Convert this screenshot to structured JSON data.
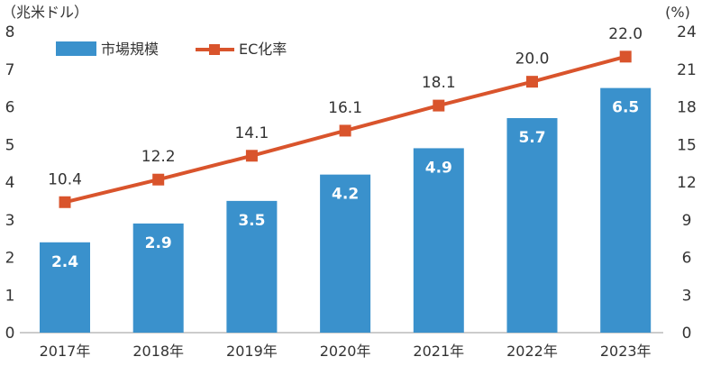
{
  "chart_data": {
    "type": "bar+line",
    "categories": [
      "2017年",
      "2018年",
      "2019年",
      "2020年",
      "2021年",
      "2022年",
      "2023年"
    ],
    "series": [
      {
        "name": "市場規模",
        "type": "bar",
        "axis": "left",
        "color": "#3a91cc",
        "values": [
          2.4,
          2.9,
          3.5,
          4.2,
          4.9,
          5.7,
          6.5
        ],
        "labels": [
          "2.4",
          "2.9",
          "3.5",
          "4.2",
          "4.9",
          "5.7",
          "6.5"
        ]
      },
      {
        "name": "EC化率",
        "type": "line",
        "axis": "right",
        "color": "#d9542c",
        "values": [
          10.4,
          12.2,
          14.1,
          16.1,
          18.1,
          20.0,
          22.0
        ],
        "labels": [
          "10.4",
          "12.2",
          "14.1",
          "16.1",
          "18.1",
          "20.0",
          "22.0"
        ]
      }
    ],
    "y_left": {
      "unit": "（兆米ドル）",
      "ylim": [
        0,
        8
      ],
      "ticks": [
        "0",
        "1",
        "2",
        "3",
        "4",
        "5",
        "6",
        "7",
        "8"
      ]
    },
    "y_right": {
      "unit": "(%)",
      "ylim": [
        0,
        24
      ],
      "ticks": [
        "0",
        "3",
        "6",
        "9",
        "12",
        "15",
        "18",
        "21",
        "24"
      ]
    },
    "legend": {
      "placement": "top-left"
    },
    "grid": false
  }
}
